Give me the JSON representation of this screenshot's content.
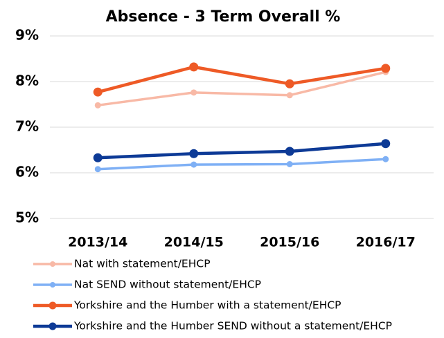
{
  "chart_data": {
    "type": "line",
    "title": "Absence - 3 Term Overall %",
    "categories": [
      "2013/14",
      "2014/15",
      "2015/16",
      "2016/17"
    ],
    "series": [
      {
        "name": "Nat with statement/EHCP",
        "color": "#f8b9a6",
        "values": [
          7.48,
          7.76,
          7.7,
          8.21
        ]
      },
      {
        "name": "Nat SEND without statement/EHCP",
        "color": "#7fb0f5",
        "values": [
          6.08,
          6.18,
          6.19,
          6.3
        ]
      },
      {
        "name": "Yorkshire and the Humber with a statement/EHCP",
        "color": "#ee5a26",
        "values": [
          7.77,
          8.32,
          7.95,
          8.29
        ]
      },
      {
        "name": "Yorkshire and the Humber SEND without a statement/EHCP",
        "color": "#0d3a96",
        "values": [
          6.33,
          6.42,
          6.47,
          6.64
        ]
      }
    ],
    "ylim": [
      5,
      9
    ],
    "yticks": [
      {
        "value": 5,
        "label": "5%"
      },
      {
        "value": 6,
        "label": "6%"
      },
      {
        "value": 7,
        "label": "7%"
      },
      {
        "value": 8,
        "label": "8%"
      },
      {
        "value": 9,
        "label": "9%"
      }
    ],
    "grid": true,
    "legend": "bottom"
  }
}
